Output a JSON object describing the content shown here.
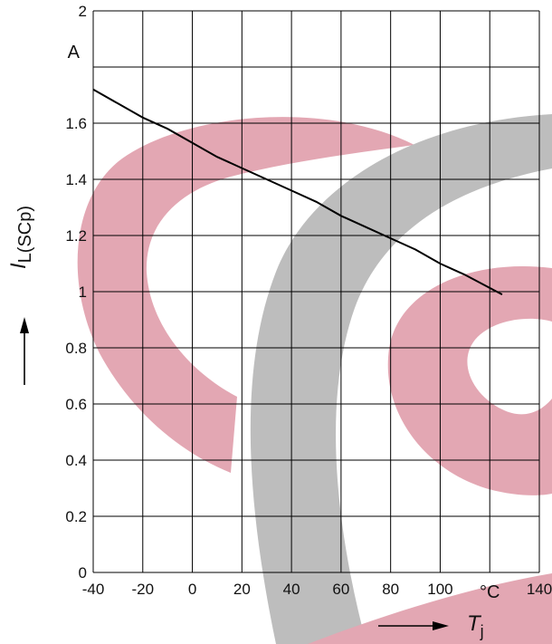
{
  "chart_data": {
    "type": "line",
    "title": "",
    "x": [
      -40,
      -30,
      -20,
      -10,
      0,
      10,
      20,
      30,
      40,
      50,
      60,
      70,
      80,
      90,
      100,
      110,
      125
    ],
    "series": [
      {
        "values": [
          1.72,
          1.67,
          1.62,
          1.58,
          1.53,
          1.48,
          1.44,
          1.4,
          1.36,
          1.32,
          1.27,
          1.23,
          1.19,
          1.15,
          1.1,
          1.06,
          0.99
        ]
      }
    ],
    "xlim": [
      -40,
      140
    ],
    "ylim": [
      0,
      2
    ],
    "x_ticks": [
      -40,
      -20,
      0,
      20,
      40,
      60,
      80,
      100,
      120,
      140
    ],
    "x_tick_labels": [
      "-40",
      "-20",
      "0",
      "20",
      "40",
      "60",
      "80",
      "100",
      "°C",
      "140"
    ],
    "y_ticks": [
      0,
      0.2,
      0.4,
      0.6,
      0.8,
      1,
      1.2,
      1.4,
      1.6,
      1.8,
      2
    ],
    "y_tick_labels": [
      "0",
      "0.2",
      "0.4",
      "0.6",
      "0.8",
      "1",
      "1.2",
      "1.4",
      "1.6",
      "A",
      "2"
    ],
    "xlabel": {
      "main": "T",
      "sub": "j"
    },
    "ylabel": {
      "main": "I",
      "sub": "L(SCp)"
    },
    "grid": true,
    "colors": {
      "line": "#000000",
      "grid": "#000000",
      "watermark_pink": "#e3a7b3",
      "watermark_gray": "#bdbdbd"
    }
  }
}
